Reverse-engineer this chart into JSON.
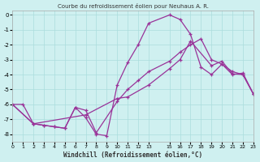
{
  "title": "Courbe du refroidissement éolien pour Neuhaus A. R.",
  "xlabel": "Windchill (Refroidissement éolien,°C)",
  "ylabel": "",
  "background_color": "#cff0f0",
  "grid_color": "#aadddd",
  "line_color": "#993399",
  "xlim": [
    0,
    23
  ],
  "ylim": [
    -8.5,
    0.3
  ],
  "xticks": [
    0,
    1,
    2,
    3,
    4,
    5,
    6,
    7,
    8,
    9,
    10,
    11,
    12,
    13,
    15,
    16,
    17,
    18,
    19,
    20,
    21,
    22,
    23
  ],
  "yticks": [
    0,
    -1,
    -2,
    -3,
    -4,
    -5,
    -6,
    -7,
    -8
  ],
  "line1_x": [
    0,
    1,
    2,
    3,
    4,
    5,
    6,
    7,
    8,
    9,
    10,
    11,
    12,
    13,
    15,
    16,
    17,
    18,
    19,
    20,
    21,
    22,
    23
  ],
  "line1_y": [
    -6.0,
    -6.0,
    -7.3,
    -7.4,
    -7.5,
    -7.6,
    -6.2,
    -6.9,
    -8.0,
    -8.1,
    -4.7,
    -3.2,
    -2.0,
    -0.55,
    0.0,
    -0.3,
    -1.3,
    -3.5,
    -4.0,
    -3.3,
    -4.0,
    -3.9,
    -5.3
  ],
  "line2_x": [
    0,
    2,
    3,
    4,
    5,
    6,
    7,
    8,
    10,
    11,
    12,
    13,
    15,
    16,
    17,
    18,
    19,
    20,
    21,
    22,
    23
  ],
  "line2_y": [
    -6.0,
    -7.3,
    -7.4,
    -7.5,
    -7.6,
    -6.2,
    -6.4,
    -7.9,
    -5.8,
    -5.0,
    -4.4,
    -3.8,
    -3.1,
    -2.5,
    -2.0,
    -1.6,
    -3.0,
    -3.3,
    -3.8,
    -4.0,
    -5.3
  ],
  "line3_x": [
    0,
    2,
    7,
    10,
    11,
    13,
    15,
    16,
    17,
    19,
    20,
    21,
    22,
    23
  ],
  "line3_y": [
    -6.0,
    -7.3,
    -6.7,
    -5.6,
    -5.5,
    -4.7,
    -3.6,
    -3.0,
    -1.75,
    -3.4,
    -3.1,
    -3.95,
    -4.0,
    -5.3
  ]
}
